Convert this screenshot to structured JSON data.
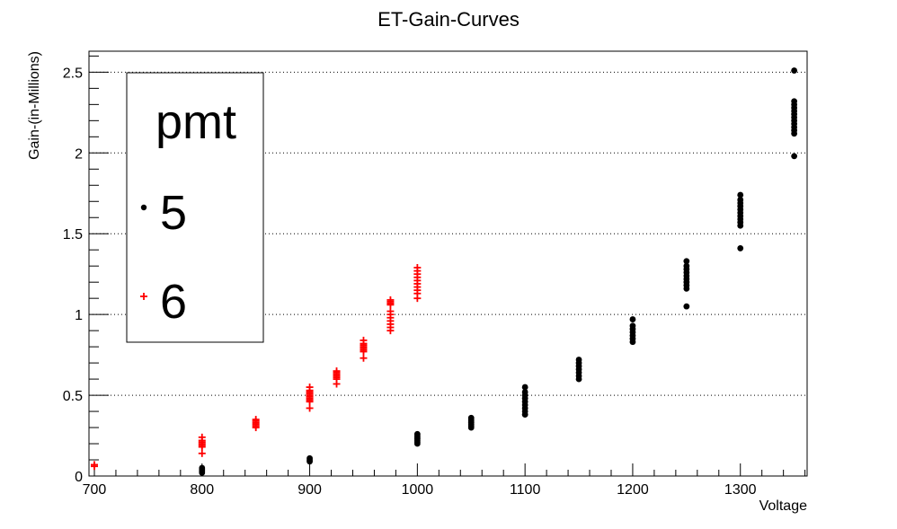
{
  "chart_data": {
    "type": "scatter",
    "title": "ET-Gain-Curves",
    "xlabel": "Voltage",
    "ylabel": "Gain-(in-Millions)",
    "xlim": [
      695,
      1362
    ],
    "ylim": [
      0,
      2.63
    ],
    "x_ticks": [
      700,
      800,
      900,
      1000,
      1100,
      1200,
      1300
    ],
    "y_ticks": [
      0,
      0.5,
      1,
      1.5,
      2,
      2.5
    ],
    "x_tick_labels": [
      "700",
      "800",
      "900",
      "1000",
      "1100",
      "1200",
      "1300"
    ],
    "y_tick_labels": [
      "0",
      "0.5",
      "1",
      "1.5",
      "2",
      "2.5"
    ],
    "grid": "horizontal dotted",
    "legend": {
      "title": "pmt",
      "placement": "top-left",
      "entries": [
        "5",
        "6"
      ]
    },
    "series": [
      {
        "name": "5",
        "marker": "circle",
        "color": "#000000",
        "points": [
          {
            "x": 800,
            "y": 0.02
          },
          {
            "x": 800,
            "y": 0.03
          },
          {
            "x": 800,
            "y": 0.04
          },
          {
            "x": 800,
            "y": 0.05
          },
          {
            "x": 900,
            "y": 0.09
          },
          {
            "x": 900,
            "y": 0.1
          },
          {
            "x": 900,
            "y": 0.11
          },
          {
            "x": 1000,
            "y": 0.2
          },
          {
            "x": 1000,
            "y": 0.21
          },
          {
            "x": 1000,
            "y": 0.22
          },
          {
            "x": 1000,
            "y": 0.23
          },
          {
            "x": 1000,
            "y": 0.24
          },
          {
            "x": 1000,
            "y": 0.25
          },
          {
            "x": 1000,
            "y": 0.26
          },
          {
            "x": 1050,
            "y": 0.3
          },
          {
            "x": 1050,
            "y": 0.31
          },
          {
            "x": 1050,
            "y": 0.32
          },
          {
            "x": 1050,
            "y": 0.33
          },
          {
            "x": 1050,
            "y": 0.34
          },
          {
            "x": 1050,
            "y": 0.35
          },
          {
            "x": 1050,
            "y": 0.36
          },
          {
            "x": 1100,
            "y": 0.38
          },
          {
            "x": 1100,
            "y": 0.4
          },
          {
            "x": 1100,
            "y": 0.42
          },
          {
            "x": 1100,
            "y": 0.44
          },
          {
            "x": 1100,
            "y": 0.46
          },
          {
            "x": 1100,
            "y": 0.48
          },
          {
            "x": 1100,
            "y": 0.5
          },
          {
            "x": 1100,
            "y": 0.52
          },
          {
            "x": 1100,
            "y": 0.55
          },
          {
            "x": 1150,
            "y": 0.6
          },
          {
            "x": 1150,
            "y": 0.62
          },
          {
            "x": 1150,
            "y": 0.64
          },
          {
            "x": 1150,
            "y": 0.66
          },
          {
            "x": 1150,
            "y": 0.68
          },
          {
            "x": 1150,
            "y": 0.7
          },
          {
            "x": 1150,
            "y": 0.72
          },
          {
            "x": 1200,
            "y": 0.83
          },
          {
            "x": 1200,
            "y": 0.85
          },
          {
            "x": 1200,
            "y": 0.87
          },
          {
            "x": 1200,
            "y": 0.89
          },
          {
            "x": 1200,
            "y": 0.91
          },
          {
            "x": 1200,
            "y": 0.93
          },
          {
            "x": 1200,
            "y": 0.97
          },
          {
            "x": 1250,
            "y": 1.05
          },
          {
            "x": 1250,
            "y": 1.16
          },
          {
            "x": 1250,
            "y": 1.18
          },
          {
            "x": 1250,
            "y": 1.2
          },
          {
            "x": 1250,
            "y": 1.22
          },
          {
            "x": 1250,
            "y": 1.24
          },
          {
            "x": 1250,
            "y": 1.26
          },
          {
            "x": 1250,
            "y": 1.28
          },
          {
            "x": 1250,
            "y": 1.3
          },
          {
            "x": 1250,
            "y": 1.33
          },
          {
            "x": 1300,
            "y": 1.41
          },
          {
            "x": 1300,
            "y": 1.55
          },
          {
            "x": 1300,
            "y": 1.57
          },
          {
            "x": 1300,
            "y": 1.59
          },
          {
            "x": 1300,
            "y": 1.61
          },
          {
            "x": 1300,
            "y": 1.63
          },
          {
            "x": 1300,
            "y": 1.65
          },
          {
            "x": 1300,
            "y": 1.67
          },
          {
            "x": 1300,
            "y": 1.69
          },
          {
            "x": 1300,
            "y": 1.71
          },
          {
            "x": 1300,
            "y": 1.74
          },
          {
            "x": 1350,
            "y": 1.98
          },
          {
            "x": 1350,
            "y": 2.12
          },
          {
            "x": 1350,
            "y": 2.14
          },
          {
            "x": 1350,
            "y": 2.16
          },
          {
            "x": 1350,
            "y": 2.18
          },
          {
            "x": 1350,
            "y": 2.2
          },
          {
            "x": 1350,
            "y": 2.22
          },
          {
            "x": 1350,
            "y": 2.24
          },
          {
            "x": 1350,
            "y": 2.26
          },
          {
            "x": 1350,
            "y": 2.28
          },
          {
            "x": 1350,
            "y": 2.3
          },
          {
            "x": 1350,
            "y": 2.32
          },
          {
            "x": 1350,
            "y": 2.51
          }
        ]
      },
      {
        "name": "6",
        "marker": "plus",
        "color": "#ff0000",
        "points": [
          {
            "x": 700,
            "y": 0.06
          },
          {
            "x": 700,
            "y": 0.07
          },
          {
            "x": 800,
            "y": 0.14
          },
          {
            "x": 800,
            "y": 0.18
          },
          {
            "x": 800,
            "y": 0.19
          },
          {
            "x": 800,
            "y": 0.2
          },
          {
            "x": 800,
            "y": 0.21
          },
          {
            "x": 800,
            "y": 0.22
          },
          {
            "x": 800,
            "y": 0.24
          },
          {
            "x": 850,
            "y": 0.3
          },
          {
            "x": 850,
            "y": 0.31
          },
          {
            "x": 850,
            "y": 0.32
          },
          {
            "x": 850,
            "y": 0.33
          },
          {
            "x": 850,
            "y": 0.34
          },
          {
            "x": 850,
            "y": 0.35
          },
          {
            "x": 900,
            "y": 0.42
          },
          {
            "x": 900,
            "y": 0.46
          },
          {
            "x": 900,
            "y": 0.47
          },
          {
            "x": 900,
            "y": 0.48
          },
          {
            "x": 900,
            "y": 0.49
          },
          {
            "x": 900,
            "y": 0.5
          },
          {
            "x": 900,
            "y": 0.51
          },
          {
            "x": 900,
            "y": 0.52
          },
          {
            "x": 900,
            "y": 0.53
          },
          {
            "x": 900,
            "y": 0.55
          },
          {
            "x": 925,
            "y": 0.57
          },
          {
            "x": 925,
            "y": 0.6
          },
          {
            "x": 925,
            "y": 0.61
          },
          {
            "x": 925,
            "y": 0.62
          },
          {
            "x": 925,
            "y": 0.63
          },
          {
            "x": 925,
            "y": 0.64
          },
          {
            "x": 925,
            "y": 0.65
          },
          {
            "x": 950,
            "y": 0.73
          },
          {
            "x": 950,
            "y": 0.77
          },
          {
            "x": 950,
            "y": 0.78
          },
          {
            "x": 950,
            "y": 0.79
          },
          {
            "x": 950,
            "y": 0.8
          },
          {
            "x": 950,
            "y": 0.81
          },
          {
            "x": 950,
            "y": 0.82
          },
          {
            "x": 950,
            "y": 0.84
          },
          {
            "x": 975,
            "y": 0.9
          },
          {
            "x": 975,
            "y": 0.92
          },
          {
            "x": 975,
            "y": 0.94
          },
          {
            "x": 975,
            "y": 0.96
          },
          {
            "x": 975,
            "y": 0.98
          },
          {
            "x": 975,
            "y": 1.0
          },
          {
            "x": 975,
            "y": 1.02
          },
          {
            "x": 975,
            "y": 1.06
          },
          {
            "x": 975,
            "y": 1.07
          },
          {
            "x": 975,
            "y": 1.08
          },
          {
            "x": 975,
            "y": 1.09
          },
          {
            "x": 1000,
            "y": 1.1
          },
          {
            "x": 1000,
            "y": 1.13
          },
          {
            "x": 1000,
            "y": 1.15
          },
          {
            "x": 1000,
            "y": 1.17
          },
          {
            "x": 1000,
            "y": 1.19
          },
          {
            "x": 1000,
            "y": 1.21
          },
          {
            "x": 1000,
            "y": 1.23
          },
          {
            "x": 1000,
            "y": 1.25
          },
          {
            "x": 1000,
            "y": 1.27
          },
          {
            "x": 1000,
            "y": 1.29
          }
        ]
      }
    ]
  }
}
